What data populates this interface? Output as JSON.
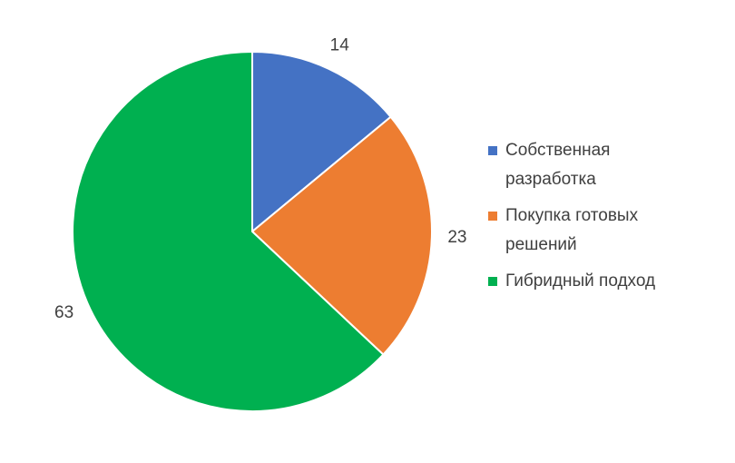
{
  "chart_data": {
    "type": "pie",
    "categories": [
      "Собственная разработка",
      "Покупка готовых решений",
      "Гибридный подход"
    ],
    "values": [
      14,
      23,
      63
    ],
    "colors": [
      "#4472c4",
      "#ed7d31",
      "#00b050"
    ],
    "legend": "right"
  }
}
